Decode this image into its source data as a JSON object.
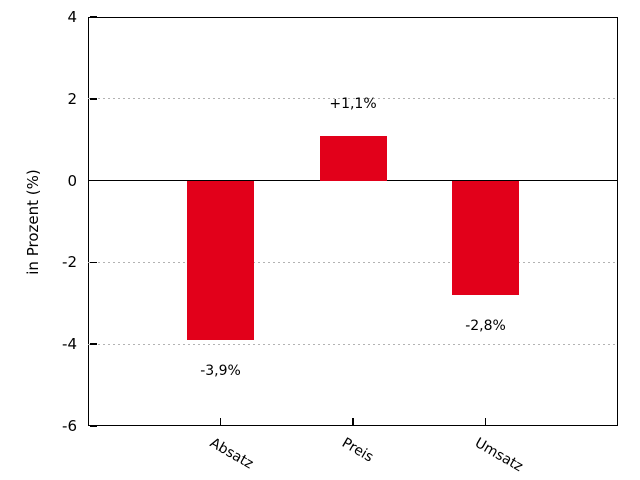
{
  "chart_data": {
    "type": "bar",
    "title": "",
    "xlabel": "",
    "ylabel": "in Prozent (%)",
    "categories": [
      "Absatz",
      "Preis",
      "Umsatz"
    ],
    "values": [
      -3.9,
      1.1,
      -2.8
    ],
    "value_labels": [
      "-3,9%",
      "+1,1%",
      "-2,8%"
    ],
    "ylim": [
      -6,
      4
    ],
    "yticks": [
      4,
      2,
      0,
      -2,
      -4,
      -6
    ],
    "ytick_labels": [
      "4",
      "2",
      "0",
      "-2",
      "-4",
      "-6"
    ],
    "grid": "horizontal dotted at ticks, solid line at zero",
    "legend": "none",
    "xtick_rotation_deg": 30,
    "colors": {
      "bar": "#e2001a",
      "grid": "#b3b3b3",
      "axis": "#000000",
      "background": "#ffffff",
      "text": "#000000"
    }
  }
}
